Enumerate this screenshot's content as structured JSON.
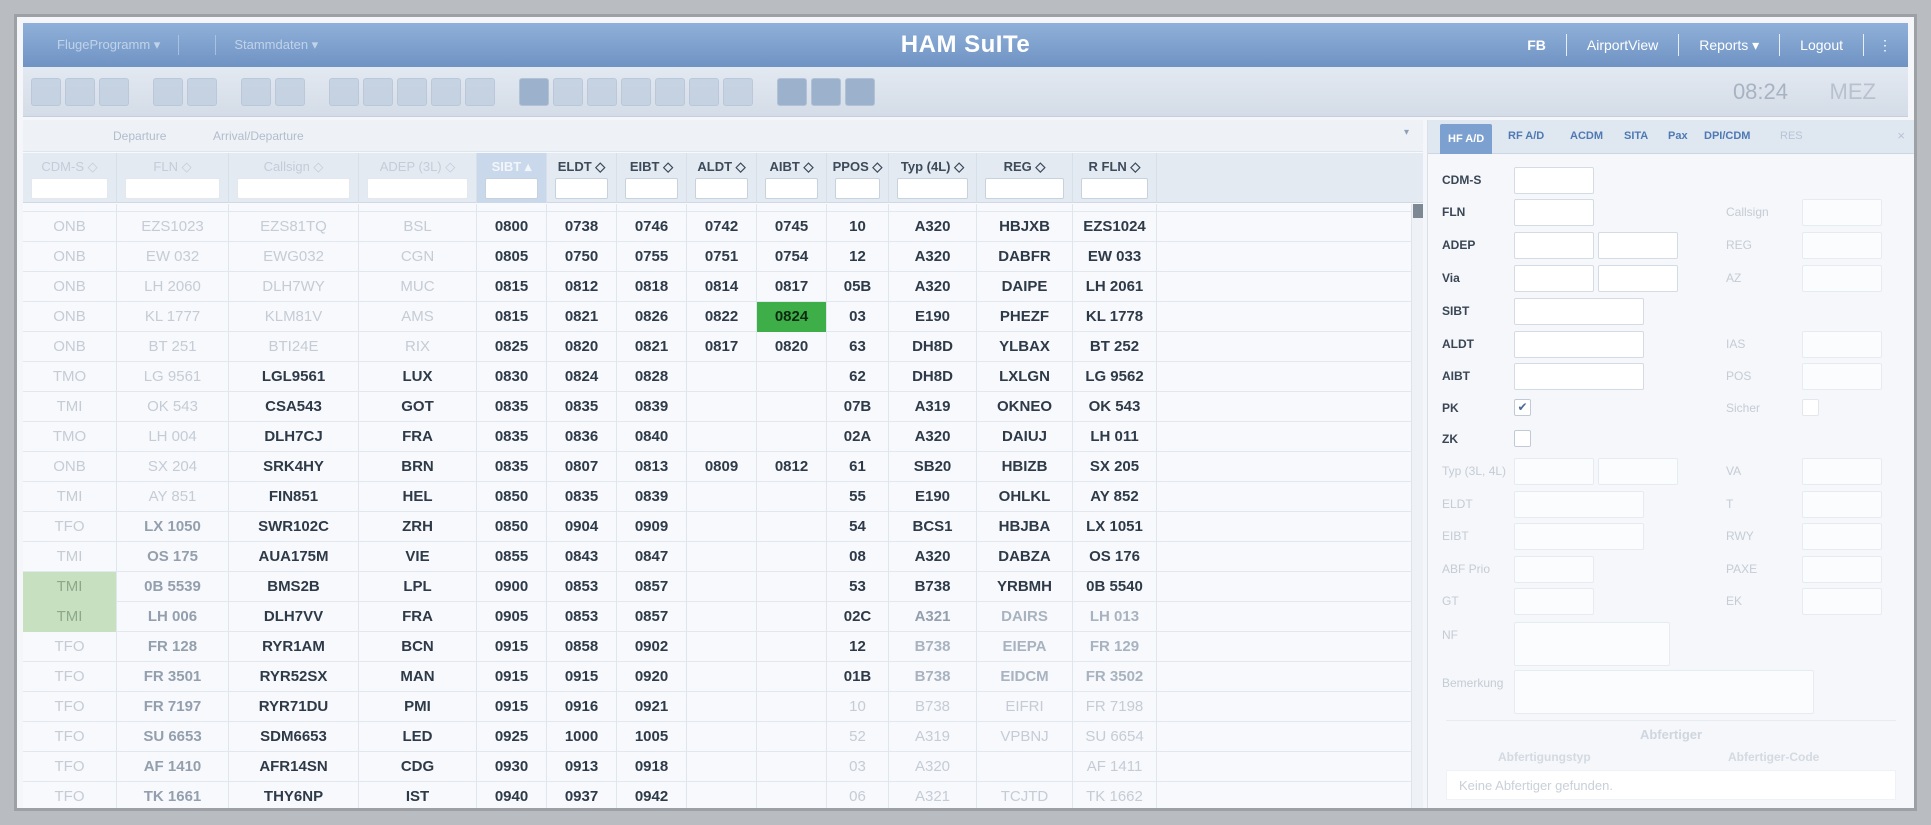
{
  "app": {
    "title": "HAM SuITe",
    "left_menus": [
      "FlugeProgramm ▾",
      "Stammdaten ▾"
    ],
    "right_menus": [
      "FB",
      "AirportView",
      "Reports ▾",
      "Logout"
    ],
    "more": "⋮",
    "clock": "08:24",
    "timezone": "MEZ"
  },
  "grid": {
    "tabs": [
      "Departure",
      "Arrival/Departure"
    ],
    "tabs_dropdown": "▾",
    "columns": [
      {
        "label": "CDM-S ◇",
        "faded": true
      },
      {
        "label": "FLN ◇",
        "faded": true
      },
      {
        "label": "Callsign ◇",
        "faded": true
      },
      {
        "label": "ADEP (3L) ◇",
        "faded": true
      },
      {
        "label": "SIBT ▴",
        "faded": false,
        "active": true
      },
      {
        "label": "ELDT ◇",
        "faded": false
      },
      {
        "label": "EIBT ◇",
        "faded": false
      },
      {
        "label": "ALDT ◇",
        "faded": false
      },
      {
        "label": "AIBT ◇",
        "faded": false
      },
      {
        "label": "PPOS ◇",
        "faded": false
      },
      {
        "label": "Typ (4L) ◇",
        "faded": false
      },
      {
        "label": "REG ◇",
        "faded": false
      },
      {
        "label": "R FLN ◇",
        "faded": false
      }
    ],
    "partial_row": [
      "",
      "",
      "",
      "",
      "",
      "",
      "",
      "",
      "",
      "",
      "",
      "",
      ""
    ],
    "rows": [
      {
        "status": "ONB",
        "fln": "EZS1023",
        "callsign": "EZS81TQ",
        "adep": "BSL",
        "sibt": "0800",
        "eldt": "0738",
        "eibt": "0746",
        "aldt": "0742",
        "aibt": "0745",
        "ppos": "10",
        "typ": "A320",
        "reg": "HBJXB",
        "rfln": "EZS1024",
        "style": "onb"
      },
      {
        "status": "ONB",
        "fln": "EW 032",
        "callsign": "EWG032",
        "adep": "CGN",
        "sibt": "0805",
        "eldt": "0750",
        "eibt": "0755",
        "aldt": "0751",
        "aibt": "0754",
        "ppos": "12",
        "typ": "A320",
        "reg": "DABFR",
        "rfln": "EW 033",
        "style": "onb"
      },
      {
        "status": "ONB",
        "fln": "LH 2060",
        "callsign": "DLH7WY",
        "adep": "MUC",
        "sibt": "0815",
        "eldt": "0812",
        "eibt": "0818",
        "aldt": "0814",
        "aibt": "0817",
        "ppos": "05B",
        "typ": "A320",
        "reg": "DAIPE",
        "rfln": "LH 2061",
        "style": "onb"
      },
      {
        "status": "ONB",
        "fln": "KL 1777",
        "callsign": "KLM81V",
        "adep": "AMS",
        "sibt": "0815",
        "eldt": "0821",
        "eibt": "0826",
        "aldt": "0822",
        "aibt": "0824",
        "ppos": "03",
        "typ": "E190",
        "reg": "PHEZF",
        "rfln": "KL 1778",
        "style": "onb",
        "green_aibt": true
      },
      {
        "status": "ONB",
        "fln": "BT 251",
        "callsign": "BTI24E",
        "adep": "RIX",
        "sibt": "0825",
        "eldt": "0820",
        "eibt": "0821",
        "aldt": "0817",
        "aibt": "0820",
        "ppos": "63",
        "typ": "DH8D",
        "reg": "YLBAX",
        "rfln": "BT 252",
        "style": "onb"
      },
      {
        "status": "TMO",
        "fln": "LG 9561",
        "callsign": "LGL9561",
        "adep": "LUX",
        "sibt": "0830",
        "eldt": "0824",
        "eibt": "0828",
        "aldt": "",
        "aibt": "",
        "ppos": "62",
        "typ": "DH8D",
        "reg": "LXLGN",
        "rfln": "LG 9562",
        "style": "tm"
      },
      {
        "status": "TMI",
        "fln": "OK 543",
        "callsign": "CSA543",
        "adep": "GOT",
        "sibt": "0835",
        "eldt": "0835",
        "eibt": "0839",
        "aldt": "",
        "aibt": "",
        "ppos": "07B",
        "typ": "A319",
        "reg": "OKNEO",
        "rfln": "OK 543",
        "style": "tm"
      },
      {
        "status": "TMO",
        "fln": "LH 004",
        "callsign": "DLH7CJ",
        "adep": "FRA",
        "sibt": "0835",
        "eldt": "0836",
        "eibt": "0840",
        "aldt": "",
        "aibt": "",
        "ppos": "02A",
        "typ": "A320",
        "reg": "DAIUJ",
        "rfln": "LH 011",
        "style": "tm"
      },
      {
        "status": "ONB",
        "fln": "SX 204",
        "callsign": "SRK4HY",
        "adep": "BRN",
        "sibt": "0835",
        "eldt": "0807",
        "eibt": "0813",
        "aldt": "0809",
        "aibt": "0812",
        "ppos": "61",
        "typ": "SB20",
        "reg": "HBIZB",
        "rfln": "SX 205",
        "style": "tm"
      },
      {
        "status": "TMI",
        "fln": "AY 851",
        "callsign": "FIN851",
        "adep": "HEL",
        "sibt": "0850",
        "eldt": "0835",
        "eibt": "0839",
        "aldt": "",
        "aibt": "",
        "ppos": "55",
        "typ": "E190",
        "reg": "OHLKL",
        "rfln": "AY 852",
        "style": "tm"
      },
      {
        "status": "TFO",
        "fln": "LX 1050",
        "callsign": "SWR102C",
        "adep": "ZRH",
        "sibt": "0850",
        "eldt": "0904",
        "eibt": "0909",
        "aldt": "",
        "aibt": "",
        "ppos": "54",
        "typ": "BCS1",
        "reg": "HBJBA",
        "rfln": "LX 1051",
        "style": "tf"
      },
      {
        "status": "TMI",
        "fln": "OS 175",
        "callsign": "AUA175M",
        "adep": "VIE",
        "sibt": "0855",
        "eldt": "0843",
        "eibt": "0847",
        "aldt": "",
        "aibt": "",
        "ppos": "08",
        "typ": "A320",
        "reg": "DABZA",
        "rfln": "OS 176",
        "style": "tf"
      },
      {
        "status": "TMI",
        "fln": "0B 5539",
        "callsign": "BMS2B",
        "adep": "LPL",
        "sibt": "0900",
        "eldt": "0853",
        "eibt": "0857",
        "aldt": "",
        "aibt": "",
        "ppos": "53",
        "typ": "B738",
        "reg": "YRBMH",
        "rfln": "0B 5540",
        "style": "tf",
        "green_status": true
      },
      {
        "status": "TMI",
        "fln": "LH 006",
        "callsign": "DLH7VV",
        "adep": "FRA",
        "sibt": "0905",
        "eldt": "0853",
        "eibt": "0857",
        "aldt": "",
        "aibt": "",
        "ppos": "02C",
        "typ": "A321",
        "reg": "DAIRS",
        "rfln": "LH 013",
        "style": "tf2",
        "green_status": true
      },
      {
        "status": "TFO",
        "fln": "FR 128",
        "callsign": "RYR1AM",
        "adep": "BCN",
        "sibt": "0915",
        "eldt": "0858",
        "eibt": "0902",
        "aldt": "",
        "aibt": "",
        "ppos": "12",
        "typ": "B738",
        "reg": "EIEPA",
        "rfln": "FR 129",
        "style": "tf3"
      },
      {
        "status": "TFO",
        "fln": "FR 3501",
        "callsign": "RYR52SX",
        "adep": "MAN",
        "sibt": "0915",
        "eldt": "0915",
        "eibt": "0920",
        "aldt": "",
        "aibt": "",
        "ppos": "01B",
        "typ": "B738",
        "reg": "EIDCM",
        "rfln": "FR 3502",
        "style": "tf3"
      },
      {
        "status": "TFO",
        "fln": "FR 7197",
        "callsign": "RYR71DU",
        "adep": "PMI",
        "sibt": "0915",
        "eldt": "0916",
        "eibt": "0921",
        "aldt": "",
        "aibt": "",
        "ppos": "10",
        "typ": "B738",
        "reg": "EIFRI",
        "rfln": "FR 7198",
        "style": "tf4"
      },
      {
        "status": "TFO",
        "fln": "SU 6653",
        "callsign": "SDM6653",
        "adep": "LED",
        "sibt": "0925",
        "eldt": "1000",
        "eibt": "1005",
        "aldt": "",
        "aibt": "",
        "ppos": "52",
        "typ": "A319",
        "reg": "VPBNJ",
        "rfln": "SU 6654",
        "style": "tf4"
      },
      {
        "status": "TFO",
        "fln": "AF 1410",
        "callsign": "AFR14SN",
        "adep": "CDG",
        "sibt": "0930",
        "eldt": "0913",
        "eibt": "0918",
        "aldt": "",
        "aibt": "",
        "ppos": "03",
        "typ": "A320",
        "reg": "",
        "rfln": "AF 1411",
        "style": "tf4"
      },
      {
        "status": "TFO",
        "fln": "TK 1661",
        "callsign": "THY6NP",
        "adep": "IST",
        "sibt": "0940",
        "eldt": "0937",
        "eibt": "0942",
        "aldt": "",
        "aibt": "",
        "ppos": "06",
        "typ": "A321",
        "reg": "TCJTD",
        "rfln": "TK 1662",
        "style": "tf4"
      }
    ]
  },
  "panel": {
    "tabs": [
      {
        "label": "HF A/D",
        "active": true
      },
      {
        "label": "RF A/D"
      },
      {
        "label": "ACDM"
      },
      {
        "label": "SITA"
      },
      {
        "label": "Pax"
      },
      {
        "label": "DPI/CDM"
      },
      {
        "label": "RES",
        "faded": true
      }
    ],
    "close": "×",
    "fields_left": [
      "CDM-S",
      "FLN",
      "ADEP",
      "Via",
      "SIBT",
      "ALDT",
      "AIBT",
      "PK",
      "ZK",
      "Typ (3L, 4L)",
      "ELDT",
      "EIBT",
      "ABF Prio",
      "GT",
      "NF",
      "Bemerkung"
    ],
    "fields_right": [
      "Callsign",
      "REG",
      "AZ",
      "IAS",
      "POS",
      "Sicher",
      "VA",
      "T",
      "RWY",
      "PAXE",
      "EK"
    ],
    "pk_checked": "✔",
    "section_title": "Abfertiger",
    "sub_headers": [
      "Abfertigungstyp",
      "Abfertiger-Code"
    ],
    "notice": "Keine Abfertiger gefunden."
  }
}
